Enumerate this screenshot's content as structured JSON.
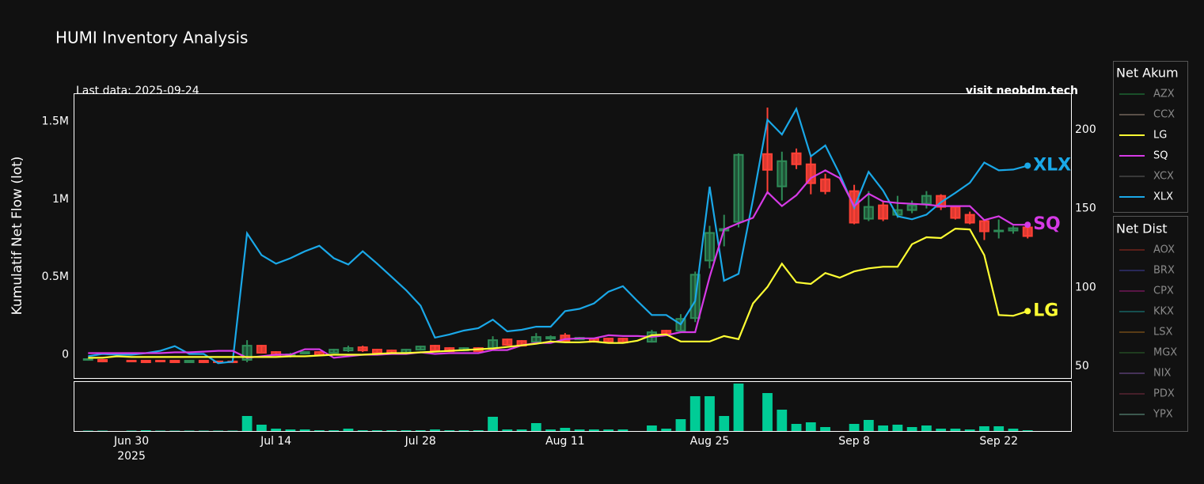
{
  "chart_data": {
    "type": "candlestick",
    "title": "HUMI Inventory Analysis",
    "annotations": {
      "last_data": "Last data: 2025-09-24",
      "site": "visit neobdm.tech"
    },
    "ylabel": "Kumulatif Net Flow (lot)",
    "x": [
      "2025-06-25",
      "2025-06-26",
      "2025-06-27",
      "2025-06-30",
      "2025-07-01",
      "2025-07-02",
      "2025-07-03",
      "2025-07-04",
      "2025-07-07",
      "2025-07-08",
      "2025-07-09",
      "2025-07-10",
      "2025-07-11",
      "2025-07-14",
      "2025-07-15",
      "2025-07-16",
      "2025-07-17",
      "2025-07-18",
      "2025-07-21",
      "2025-07-22",
      "2025-07-23",
      "2025-07-24",
      "2025-07-25",
      "2025-07-28",
      "2025-07-29",
      "2025-07-30",
      "2025-07-31",
      "2025-08-01",
      "2025-08-04",
      "2025-08-05",
      "2025-08-06",
      "2025-08-07",
      "2025-08-08",
      "2025-08-11",
      "2025-08-12",
      "2025-08-13",
      "2025-08-14",
      "2025-08-15",
      "2025-08-18",
      "2025-08-19",
      "2025-08-20",
      "2025-08-21",
      "2025-08-22",
      "2025-08-25",
      "2025-08-26",
      "2025-08-27",
      "2025-08-28",
      "2025-08-29",
      "2025-09-01",
      "2025-09-02",
      "2025-09-03",
      "2025-09-04",
      "2025-09-05",
      "2025-09-08",
      "2025-09-09",
      "2025-09-10",
      "2025-09-11",
      "2025-09-12",
      "2025-09-15",
      "2025-09-16",
      "2025-09-17",
      "2025-09-18",
      "2025-09-19",
      "2025-09-22",
      "2025-09-23",
      "2025-09-24"
    ],
    "xlim": [
      "2025-06-24",
      "2025-09-29"
    ],
    "xticks": [
      {
        "value": "2025-06-30",
        "label": "Jun 30\n2025"
      },
      {
        "value": "2025-07-14",
        "label": "Jul 14"
      },
      {
        "value": "2025-07-28",
        "label": "Jul 28"
      },
      {
        "value": "2025-08-11",
        "label": "Aug 11"
      },
      {
        "value": "2025-08-25",
        "label": "Aug 25"
      },
      {
        "value": "2025-09-08",
        "label": "Sep 8"
      },
      {
        "value": "2025-09-22",
        "label": "Sep 22"
      }
    ],
    "ylim": [
      -150000,
      1680000
    ],
    "yticks": [
      0,
      {
        "value": 500000,
        "label": "0.5M"
      },
      {
        "value": 1000000,
        "label": "1M"
      },
      {
        "value": 1500000,
        "label": "1.5M"
      }
    ],
    "y2lim": [
      42.5,
      223
    ],
    "y2ticks": [
      50,
      100,
      150,
      200
    ],
    "series": [
      {
        "name": "XLX",
        "color": "#1aa8e8",
        "values": [
          -10000,
          5000,
          0,
          0,
          10000,
          25000,
          55000,
          5000,
          5000,
          -55000,
          -45000,
          780000,
          640000,
          585000,
          620000,
          665000,
          700000,
          620000,
          580000,
          665000,
          585000,
          500000,
          415000,
          315000,
          110000,
          130000,
          155000,
          170000,
          225000,
          150000,
          160000,
          180000,
          180000,
          280000,
          295000,
          330000,
          405000,
          440000,
          345000,
          255000,
          255000,
          195000,
          345000,
          1080000,
          475000,
          520000,
          1000000,
          1510000,
          1415000,
          1580000,
          1275000,
          1345000,
          1160000,
          945000,
          1175000,
          1055000,
          890000,
          870000,
          900000,
          980000,
          1040000,
          1105000,
          1235000,
          1185000,
          1190000,
          1215000
        ]
      },
      {
        "name": "SQ",
        "color": "#d63ae6",
        "values": [
          10000,
          10000,
          10000,
          10000,
          10000,
          10000,
          15000,
          15000,
          20000,
          25000,
          25000,
          -20000,
          -10000,
          0,
          0,
          35000,
          35000,
          -20000,
          -10000,
          0,
          0,
          5000,
          5000,
          15000,
          5000,
          10000,
          10000,
          10000,
          30000,
          30000,
          60000,
          75000,
          75000,
          100000,
          105000,
          105000,
          125000,
          120000,
          120000,
          115000,
          125000,
          145000,
          145000,
          500000,
          805000,
          845000,
          880000,
          1045000,
          955000,
          1025000,
          1135000,
          1185000,
          1135000,
          955000,
          1035000,
          985000,
          975000,
          970000,
          965000,
          955000,
          955000,
          955000,
          865000,
          890000,
          835000,
          835000
        ]
      },
      {
        "name": "LG",
        "color": "#ffff33",
        "values": [
          -20000,
          -20000,
          -10000,
          -15000,
          -15000,
          -15000,
          -15000,
          -15000,
          -15000,
          -15000,
          -15000,
          -15000,
          -15000,
          -15000,
          -10000,
          -10000,
          -5000,
          0,
          0,
          0,
          5000,
          10000,
          10000,
          15000,
          20000,
          25000,
          30000,
          35000,
          40000,
          50000,
          60000,
          70000,
          85000,
          80000,
          80000,
          85000,
          75000,
          75000,
          90000,
          125000,
          130000,
          85000,
          85000,
          85000,
          120000,
          100000,
          330000,
          435000,
          585000,
          465000,
          455000,
          525000,
          495000,
          535000,
          555000,
          565000,
          565000,
          710000,
          755000,
          750000,
          810000,
          805000,
          640000,
          255000,
          250000,
          280000
        ]
      }
    ],
    "candles": {
      "axis": "y2",
      "increasing_color": "#2e8b57",
      "decreasing_color": "#ff4136",
      "open": [
        54,
        54,
        null,
        53.5,
        53.5,
        53.5,
        53.5,
        52.5,
        53.5,
        53,
        53,
        54,
        63,
        59,
        57,
        58,
        59,
        58.5,
        60,
        62,
        60.5,
        60,
        58.5,
        60.5,
        63,
        61.5,
        60,
        61.5,
        61.5,
        67,
        66,
        65.5,
        67.5,
        69.5,
        67,
        67.5,
        67.5,
        67.5,
        null,
        65.5,
        72.5,
        72.5,
        80.5,
        117,
        136,
        141.5,
        null,
        184.5,
        164,
        185,
        178,
        168.5,
        null,
        161,
        143.5,
        152,
        146,
        149,
        153,
        158,
        151,
        146,
        142,
        135.5,
        136,
        138
      ],
      "high": [
        55,
        54.5,
        null,
        53.5,
        54,
        53.5,
        54,
        53.5,
        54,
        53.5,
        53.5,
        66.5,
        63.5,
        59.5,
        58.5,
        59.5,
        59.5,
        61,
        63,
        63,
        61,
        60.5,
        61,
        63,
        63.5,
        62,
        62,
        62,
        69,
        67.5,
        66.5,
        71,
        69.5,
        71,
        68.5,
        68,
        68,
        68,
        null,
        73,
        73,
        83,
        110,
        139,
        146,
        185,
        null,
        214,
        186,
        188,
        183,
        172,
        null,
        165,
        161,
        155,
        158,
        155,
        161,
        159,
        152,
        148,
        143,
        143,
        139,
        140
      ],
      "low": [
        53.5,
        52.5,
        null,
        52.8,
        52,
        52.5,
        52.5,
        52.5,
        52,
        52.5,
        52,
        52.5,
        58,
        56.5,
        55.5,
        57.5,
        56.5,
        58,
        59,
        59,
        58,
        57.5,
        58,
        60,
        59.5,
        59,
        59.5,
        59,
        60,
        63,
        62.5,
        65,
        65.5,
        65.5,
        66.5,
        65,
        65,
        64.5,
        null,
        65,
        70,
        71,
        78,
        112,
        126,
        138,
        null,
        159,
        155,
        175,
        159,
        159,
        null,
        140,
        142,
        142,
        144,
        147,
        150,
        149,
        143,
        140,
        130,
        131,
        134,
        131
      ],
      "close": [
        54.5,
        53,
        null,
        53,
        52.5,
        53,
        52.5,
        53.5,
        52.5,
        52.5,
        52.5,
        63,
        58.5,
        57,
        57.5,
        59,
        57,
        60.5,
        61.5,
        60,
        58.5,
        58,
        60.5,
        62.5,
        60,
        59.5,
        61.5,
        59.5,
        66.5,
        63.5,
        63,
        68.5,
        68.5,
        66,
        68,
        65.5,
        65.5,
        65,
        null,
        71.5,
        70.5,
        80,
        108,
        134.5,
        137,
        184,
        null,
        174.5,
        180,
        178,
        166,
        161,
        null,
        141,
        151,
        143.5,
        149,
        152,
        158,
        151,
        144,
        141,
        135.5,
        136,
        137.5,
        132.5
      ]
    },
    "volume": {
      "color": "#00cc96",
      "ylim": [
        0,
        63
      ],
      "values": [
        0.5,
        0.5,
        null,
        0.5,
        1,
        0.5,
        0.5,
        0.5,
        0.5,
        0.5,
        0.5,
        19,
        8,
        3,
        2,
        2,
        1,
        1,
        3,
        1,
        1,
        1,
        1,
        1,
        2,
        1,
        1,
        1,
        18,
        2,
        2,
        10,
        2,
        4,
        2,
        2,
        2,
        2,
        null,
        7,
        3,
        15,
        44,
        44,
        19,
        60,
        null,
        48,
        27,
        9,
        11,
        5,
        null,
        9,
        14,
        7,
        8,
        5,
        7,
        3,
        3,
        2,
        6,
        6,
        3,
        1
      ]
    },
    "legends": [
      {
        "title": "Net Akum",
        "items": [
          {
            "name": "AZX",
            "color": "#1f7a3a",
            "visible": false
          },
          {
            "name": "CCX",
            "color": "#8c7b70",
            "visible": false
          },
          {
            "name": "LG",
            "color": "#ffff33",
            "visible": true
          },
          {
            "name": "SQ",
            "color": "#d63ae6",
            "visible": true
          },
          {
            "name": "XCX",
            "color": "#555555",
            "visible": false
          },
          {
            "name": "XLX",
            "color": "#1aa8e8",
            "visible": true
          },
          {
            "name": "YPX",
            "color": "#5a8a7a",
            "visible": false
          }
        ]
      },
      {
        "title": "Net Dist",
        "items": [
          {
            "name": "AOX",
            "color": "#8a2a20",
            "visible": false
          },
          {
            "name": "BRX",
            "color": "#3a3a8a",
            "visible": false
          },
          {
            "name": "CPX",
            "color": "#8a1a6a",
            "visible": false
          },
          {
            "name": "KKX",
            "color": "#1a7a7a",
            "visible": false
          },
          {
            "name": "LSX",
            "color": "#8a5a1a",
            "visible": false
          },
          {
            "name": "MGX",
            "color": "#2a5a2a",
            "visible": false
          },
          {
            "name": "NIX",
            "color": "#6a4a8a",
            "visible": false
          },
          {
            "name": "PDX",
            "color": "#6a2a3a",
            "visible": false
          },
          {
            "name": "YPX",
            "color": "#5a8a7a",
            "visible": false
          }
        ]
      }
    ]
  }
}
